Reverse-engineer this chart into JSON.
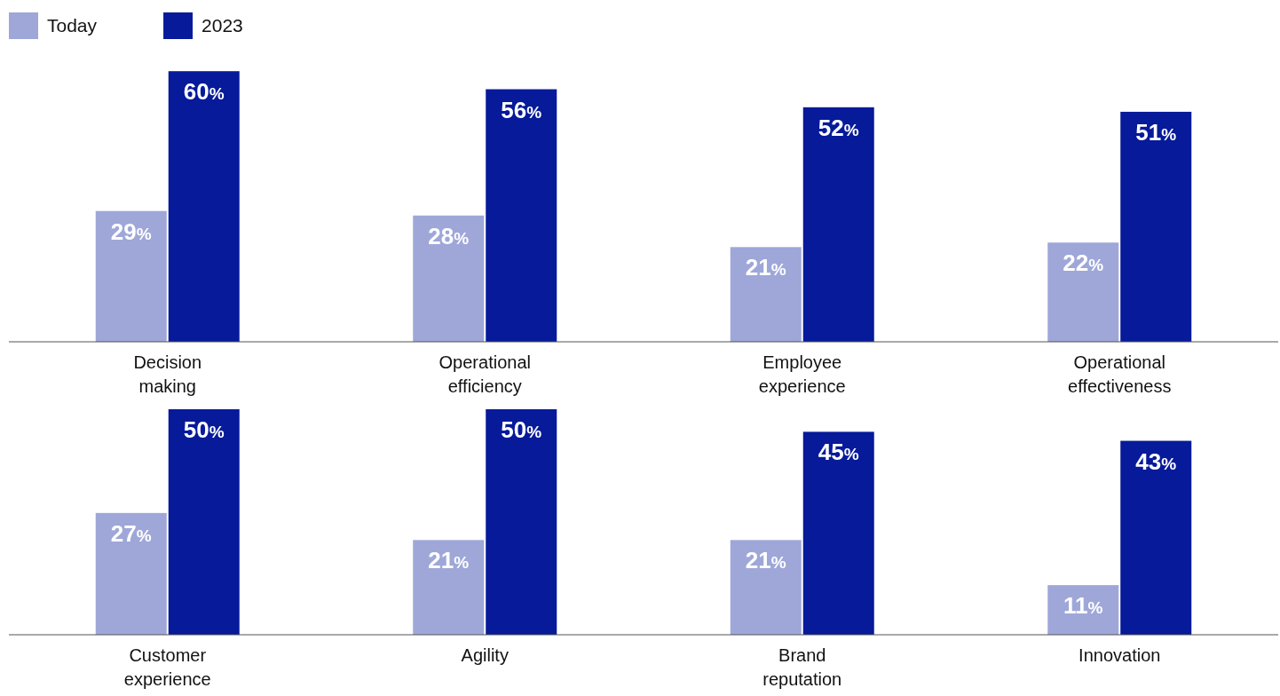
{
  "chart_data": [
    {
      "type": "bar",
      "categories": [
        "Decision making",
        "Operational efficiency",
        "Employee experience",
        "Operational effectiveness"
      ],
      "tick_labels": "x",
      "legend": "top left",
      "series": [
        {
          "name": "Today",
          "color": "#9ea7d8",
          "values": [
            29,
            28,
            21,
            22
          ],
          "value_labels": [
            "29%",
            "28%",
            "21%",
            "22%"
          ]
        },
        {
          "name": "2023",
          "color": "#061a9a",
          "values": [
            60,
            56,
            52,
            51
          ],
          "value_labels": [
            "60%",
            "56%",
            "52%",
            "51%"
          ]
        }
      ]
    },
    {
      "type": "bar",
      "categories": [
        "Customer experience",
        "Agility",
        "Brand reputation",
        "Innovation"
      ],
      "tick_labels": "x",
      "series": [
        {
          "color": "#9ea7d8",
          "values": [
            27,
            21,
            21,
            11
          ],
          "value_labels": [
            "27%",
            "21%",
            "21%",
            "11%"
          ]
        },
        {
          "color": "#061a9a",
          "values": [
            50,
            50,
            45,
            43
          ],
          "value_labels": [
            "50%",
            "50%",
            "45%",
            "43%"
          ]
        }
      ]
    }
  ]
}
